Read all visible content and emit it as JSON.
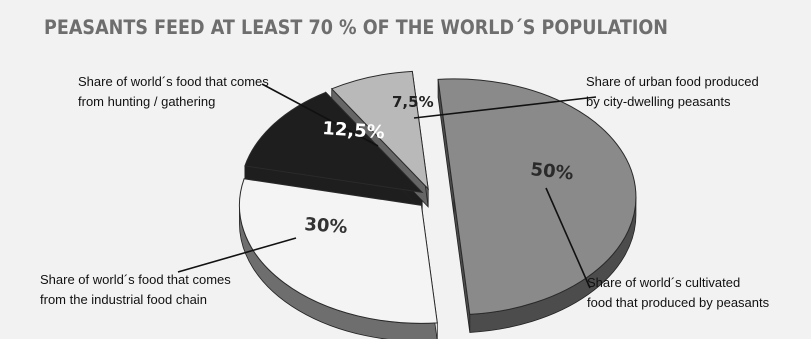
{
  "chart_data": {
    "type": "pie",
    "title": "PEASANTS FEED AT LEAST 70 % OF THE WORLD´S POPULATION",
    "slices": [
      {
        "label_lines": [
          "Share of world´s cultivated",
          "food that produced by peasants"
        ],
        "value": 50,
        "value_label": "50%",
        "color": "#8a8a8a"
      },
      {
        "label_lines": [
          "Share of world´s food that comes",
          "from the industrial food chain"
        ],
        "value": 30,
        "value_label": "30%",
        "color": "#f4f4f4"
      },
      {
        "label_lines": [
          "Share of world´s food that comes",
          "from hunting / gathering"
        ],
        "value": 12.5,
        "value_label": "12,5%",
        "color": "#1e1e1e"
      },
      {
        "label_lines": [
          "Share of urban food produced",
          "by city-dwelling peasants"
        ],
        "value": 7.5,
        "value_label": "7,5%",
        "color": "#b9b9b9"
      }
    ]
  }
}
